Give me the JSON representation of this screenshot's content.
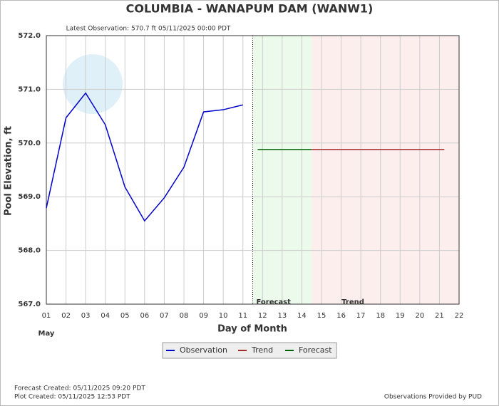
{
  "chart_data": {
    "type": "line",
    "title": "COLUMBIA - WANAPUM DAM  (WANW1)",
    "subtitle": "Latest Observation: 570.7 ft 05/11/2025 00:00 PDT",
    "x_label": "Day of Month",
    "x_sublabel": "May",
    "y_label": "Pool Elevation, ft",
    "xlim": [
      1,
      22
    ],
    "xticks": [
      {
        "value": 1,
        "label": "01"
      },
      {
        "value": 2,
        "label": "02"
      },
      {
        "value": 3,
        "label": "03"
      },
      {
        "value": 4,
        "label": "04"
      },
      {
        "value": 5,
        "label": "05"
      },
      {
        "value": 6,
        "label": "06"
      },
      {
        "value": 7,
        "label": "07"
      },
      {
        "value": 8,
        "label": "08"
      },
      {
        "value": 9,
        "label": "09"
      },
      10,
      11,
      12,
      13,
      14,
      15,
      16,
      17,
      18,
      19,
      20,
      21,
      22
    ],
    "ylim": [
      567,
      572
    ],
    "yticks": [
      {
        "value": 567,
        "label": "567.0"
      },
      {
        "value": 568,
        "label": "568.0"
      },
      {
        "value": 569,
        "label": "569.0"
      },
      {
        "value": 570,
        "label": "570.0"
      },
      {
        "value": 571,
        "label": "571.0"
      },
      {
        "value": 572,
        "label": "572.0"
      }
    ],
    "grid": true,
    "regions": [
      {
        "label": "Forecast",
        "range": [
          11.5,
          14.5
        ],
        "color": "#ecfaec"
      },
      {
        "label": "Trend",
        "range": [
          14.5,
          22
        ],
        "color": "#fdeeee"
      }
    ],
    "series": [
      {
        "name": "Observation",
        "color": "#0000cc",
        "x": [
          1,
          2,
          3,
          4,
          5,
          6,
          7,
          8,
          9,
          10,
          11
        ],
        "values": [
          568.79,
          570.47,
          570.93,
          570.34,
          569.18,
          568.55,
          568.98,
          569.55,
          570.58,
          570.62,
          570.71
        ]
      },
      {
        "name": "Trend",
        "color": "#a52a2a",
        "x": [
          14.5,
          21.25
        ],
        "values": [
          569.88,
          569.88
        ]
      },
      {
        "name": "Forecast",
        "color": "#006400",
        "x": [
          11.75,
          14.5
        ],
        "values": [
          569.88,
          569.88
        ]
      }
    ],
    "notes": [
      "Forecast Created: 05/11/2025 09:20 PDT",
      "Plot Created: 05/11/2025 12:53 PDT"
    ],
    "credit": "Observations Provided by PUD"
  }
}
